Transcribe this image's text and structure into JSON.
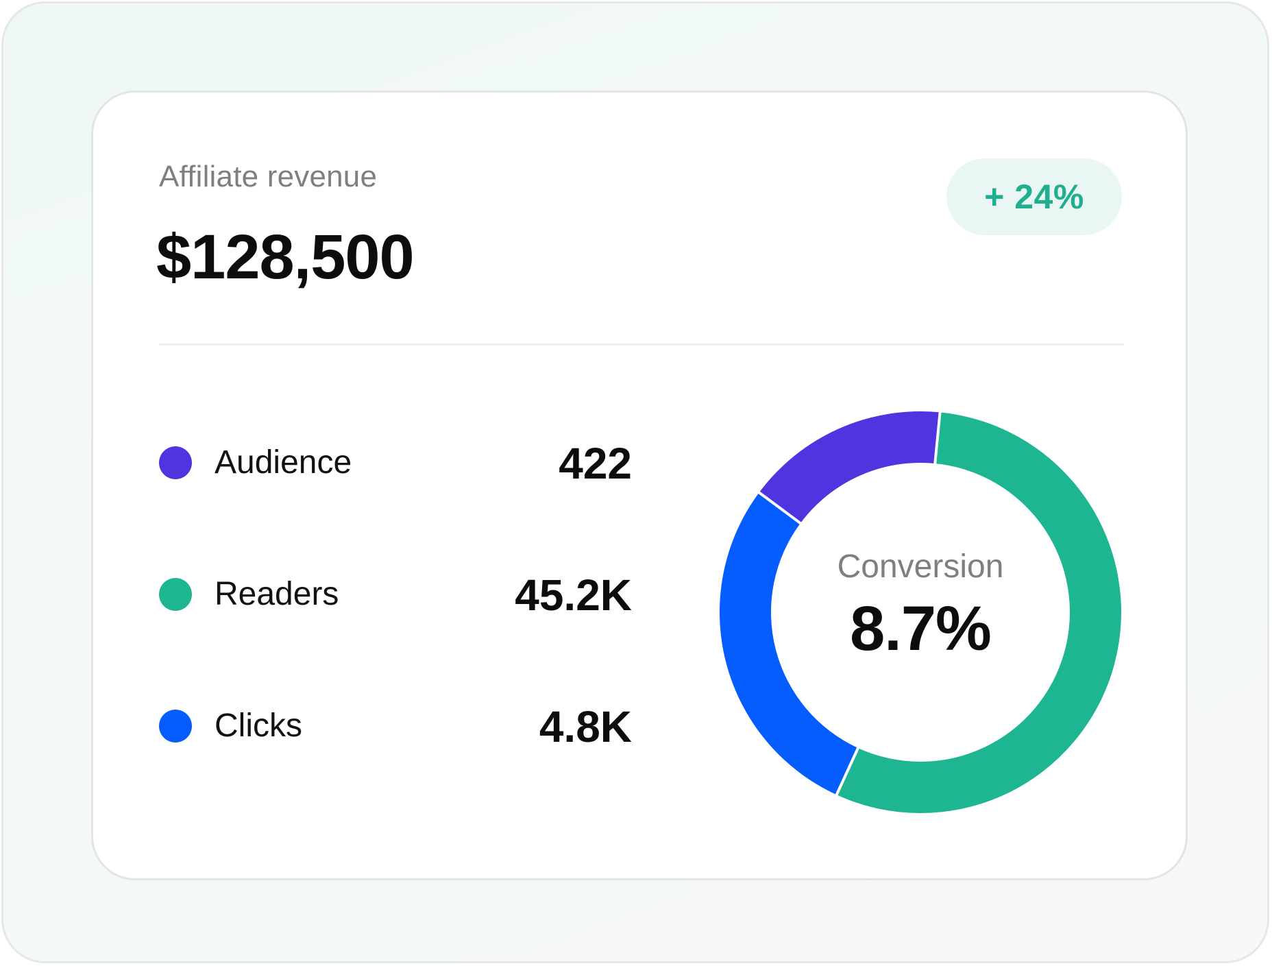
{
  "header": {
    "label": "Affiliate revenue",
    "value": "$128,500",
    "change_badge": "+ 24%"
  },
  "legend": [
    {
      "label": "Audience",
      "value": "422",
      "color": "#4f35e0"
    },
    {
      "label": "Readers",
      "value": "45.2K",
      "color": "#1db592"
    },
    {
      "label": "Clicks",
      "value": "4.8K",
      "color": "#055cff"
    }
  ],
  "chart_data": {
    "type": "pie",
    "style": "donut",
    "center_label": "Conversion",
    "center_value": "8.7%",
    "slices": [
      {
        "legend_item": "Readers",
        "share": 0.553,
        "color": "#1db592"
      },
      {
        "legend_item": "Clicks",
        "share": 0.283,
        "color": "#055cff"
      },
      {
        "legend_item": "Audience",
        "share": 0.164,
        "color": "#4f35e0"
      }
    ],
    "start_angle_deg": 5.6,
    "direction": "clockwise",
    "slice_separator_color": "#ffffff"
  }
}
